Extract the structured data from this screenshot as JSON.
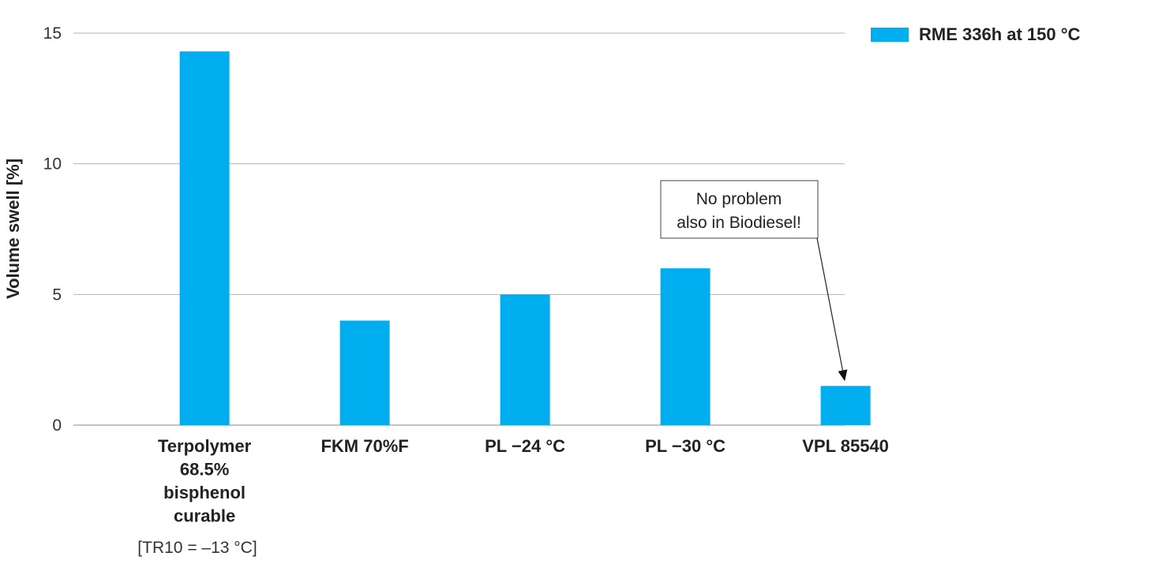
{
  "chart_data": {
    "type": "bar",
    "title": "",
    "xlabel": "",
    "ylabel": "Volume swell [%]",
    "ylim": [
      0,
      15
    ],
    "yticks": [
      0,
      5,
      10,
      15
    ],
    "grid": true,
    "legend_position": "top-right",
    "categories": [
      [
        "Terpolymer",
        "68.5%",
        "bisphenol",
        "curable"
      ],
      [
        "FKM 70%F"
      ],
      [
        "PL −24 °C"
      ],
      [
        "PL −30 °C"
      ],
      [
        "VPL 85540"
      ]
    ],
    "series": [
      {
        "name": "RME 336h at 150 °C",
        "color": "#00adee",
        "values": [
          14.3,
          4.0,
          5.0,
          6.0,
          1.5
        ]
      }
    ],
    "annotations": {
      "category_note": "[TR10 = –13 °C]",
      "callout_lines": [
        "No problem",
        "also in Biodiesel!"
      ],
      "callout_target_index": 4
    }
  }
}
